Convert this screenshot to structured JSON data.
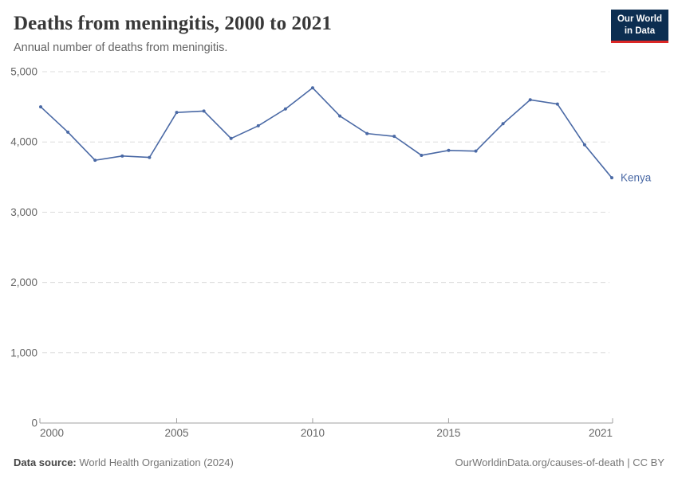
{
  "header": {
    "title": "Deaths from meningitis, 2000 to 2021",
    "subtitle": "Annual number of deaths from meningitis."
  },
  "logo": {
    "line1": "Our World",
    "line2": "in Data"
  },
  "footer": {
    "source_label": "Data source:",
    "source_text": "World Health Organization (2024)",
    "link_text": "OurWorldinData.org/causes-of-death | CC BY"
  },
  "colors": {
    "line": "#4a69a5",
    "grid": "#dddddd",
    "axis": "#a0a0a0",
    "tick_label": "#666666",
    "logo_bg": "#0c2e51",
    "logo_underline": "#dc2726"
  },
  "chart_data": {
    "type": "line",
    "title": "Deaths from meningitis, 2000 to 2021",
    "xlabel": "",
    "ylabel": "",
    "x": [
      2000,
      2001,
      2002,
      2003,
      2004,
      2005,
      2006,
      2007,
      2008,
      2009,
      2010,
      2011,
      2012,
      2013,
      2014,
      2015,
      2016,
      2017,
      2018,
      2019,
      2020,
      2021
    ],
    "series": [
      {
        "name": "Kenya",
        "values": [
          4500,
          4140,
          3740,
          3800,
          3780,
          4420,
          4440,
          4050,
          4230,
          4470,
          4770,
          4370,
          4120,
          4080,
          3810,
          3880,
          3870,
          4260,
          4600,
          4540,
          3960,
          3490
        ]
      }
    ],
    "xticks": [
      2000,
      2005,
      2010,
      2015,
      2021
    ],
    "yticks": [
      0,
      1000,
      2000,
      3000,
      4000,
      5000
    ],
    "xlim": [
      2000,
      2021
    ],
    "ylim": [
      0,
      5000
    ],
    "grid": "horizontal-dashed",
    "legend_position": "end-of-line-label",
    "entity_label": "Kenya"
  }
}
